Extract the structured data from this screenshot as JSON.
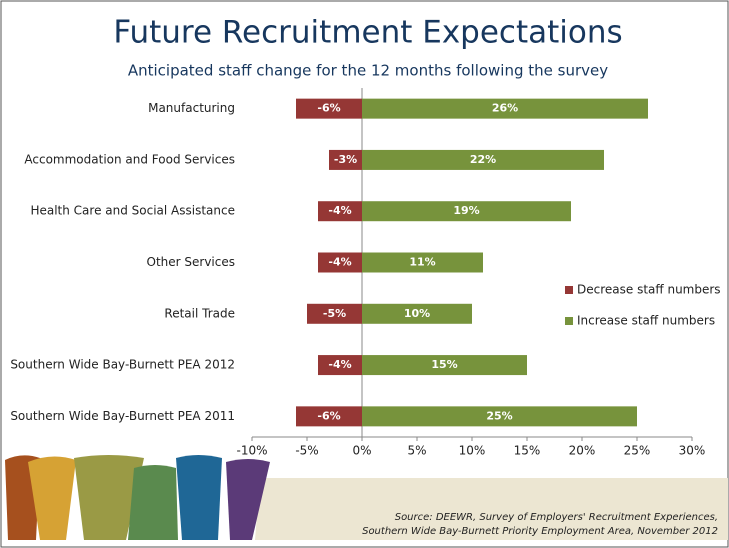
{
  "chart_data": {
    "type": "bar",
    "title": "Future Recruitment Expectations",
    "subtitle": "Anticipated staff change for the 12 months following the survey",
    "categories": [
      "Manufacturing",
      "Accommodation and Food Services",
      "Health Care and Social Assistance",
      "Other Services",
      "Retail Trade",
      "Southern Wide Bay-Burnett PEA 2012",
      "Southern Wide Bay-Burnett PEA 2011"
    ],
    "series": [
      {
        "name": "Decrease staff numbers",
        "color": "#953735",
        "values": [
          -6,
          -3,
          -4,
          -4,
          -5,
          -4,
          -6
        ],
        "value_labels": [
          "-6%",
          "-3%",
          "-4%",
          "-4%",
          "-5%",
          "-4%",
          "-6%"
        ]
      },
      {
        "name": "Increase staff numbers",
        "color": "#77933c",
        "values": [
          26,
          22,
          19,
          11,
          10,
          15,
          25
        ],
        "value_labels": [
          "26%",
          "22%",
          "19%",
          "11%",
          "10%",
          "15%",
          "25%"
        ]
      }
    ],
    "xlim": [
      -10,
      30
    ],
    "xticks": [
      {
        "value": -10,
        "label": "-10%"
      },
      {
        "value": -5,
        "label": "-5%"
      },
      {
        "value": 0,
        "label": "0%"
      },
      {
        "value": 5,
        "label": "5%"
      },
      {
        "value": 10,
        "label": "10%"
      },
      {
        "value": 15,
        "label": "15%"
      },
      {
        "value": 20,
        "label": "20%"
      },
      {
        "value": 25,
        "label": "25%"
      },
      {
        "value": 30,
        "label": "30%"
      }
    ],
    "legend": "right",
    "source": [
      "Source: DEEWR, Survey of Employers' Recruitment Experiences,",
      "Southern Wide Bay-Burnett Priority Employment Area, November 2012"
    ]
  }
}
